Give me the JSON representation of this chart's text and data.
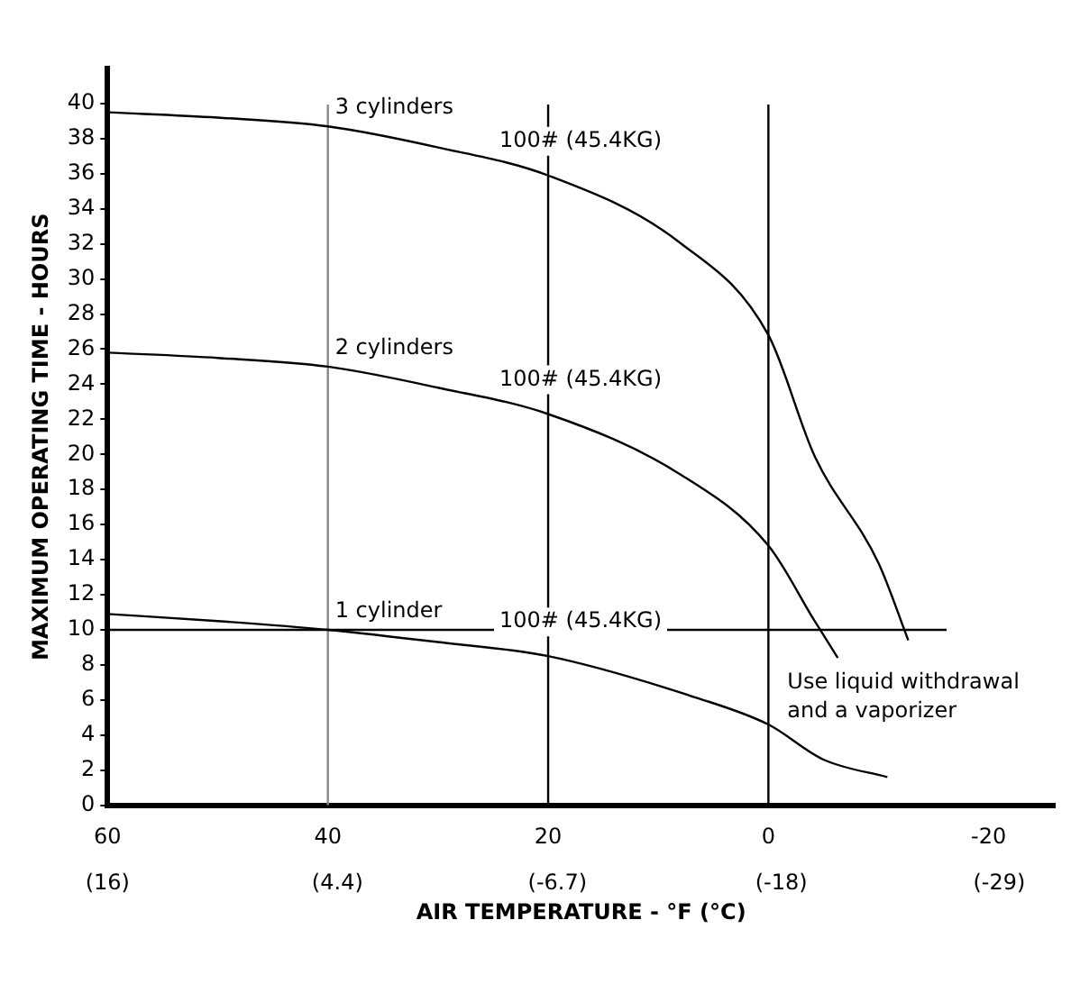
{
  "chart_data": {
    "type": "line",
    "xlabel": "AIR TEMPERATURE - °F (°C)",
    "ylabel": "MAXIMUM OPERATING TIME - HOURS",
    "x": [
      60,
      50,
      40,
      30,
      20,
      8.1,
      0,
      -4.2,
      -10,
      -12.7
    ],
    "series": [
      {
        "name": "3 cylinders",
        "color": "#000000",
        "values": [
          39.5,
          39.2,
          38.7,
          37.5,
          35.9,
          32.1,
          26.8,
          19.9,
          13.8,
          9.4
        ]
      },
      {
        "name": "2 cylinders",
        "color": "#000000",
        "x": [
          60,
          50,
          40,
          30,
          20,
          8.1,
          0,
          -4.2,
          -6.3
        ],
        "values": [
          25.8,
          25.5,
          25.0,
          23.8,
          22.3,
          18.9,
          14.8,
          10.5,
          8.4
        ]
      },
      {
        "name": "1 cylinder",
        "color": "#000000",
        "x": [
          60,
          50,
          40,
          30,
          20,
          6.4,
          0,
          -5,
          -10.8
        ],
        "values": [
          10.9,
          10.5,
          10.0,
          9.3,
          8.5,
          6.1,
          4.6,
          2.6,
          1.6
        ]
      }
    ],
    "xlim": [
      60,
      -26
    ],
    "xticks": [
      60,
      40,
      20,
      0,
      -20
    ],
    "x2lim": [
      16,
      -31.8
    ],
    "x2ticks": [
      {
        "value": 16,
        "label": "(16)"
      },
      {
        "value": 4.4,
        "label": "(4.4)"
      },
      {
        "value": -6.7,
        "label": "(-6.7)"
      },
      {
        "value": -18,
        "label": "(-18)"
      },
      {
        "value": -29,
        "label": "(-29)"
      }
    ],
    "ylim": [
      0,
      42
    ],
    "yticks": [
      0,
      2,
      4,
      6,
      8,
      10,
      12,
      14,
      16,
      18,
      20,
      22,
      24,
      26,
      28,
      30,
      32,
      34,
      36,
      38,
      40
    ],
    "ref_lines": [
      {
        "axis": "x",
        "value": 40,
        "color": "#888888"
      },
      {
        "axis": "x",
        "value": 20,
        "color": "#000000"
      },
      {
        "axis": "x",
        "value": 0,
        "color": "#000000"
      },
      {
        "axis": "y",
        "value": 10,
        "color": "#000000"
      }
    ],
    "annotations": [
      "100# (45.4KG)",
      "100# (45.4KG)",
      "100# (45.4KG)",
      "Use liquid withdrawal and a vaporizer"
    ],
    "grid": false,
    "legend": false,
    "marker": "none",
    "line_style": "solid"
  }
}
